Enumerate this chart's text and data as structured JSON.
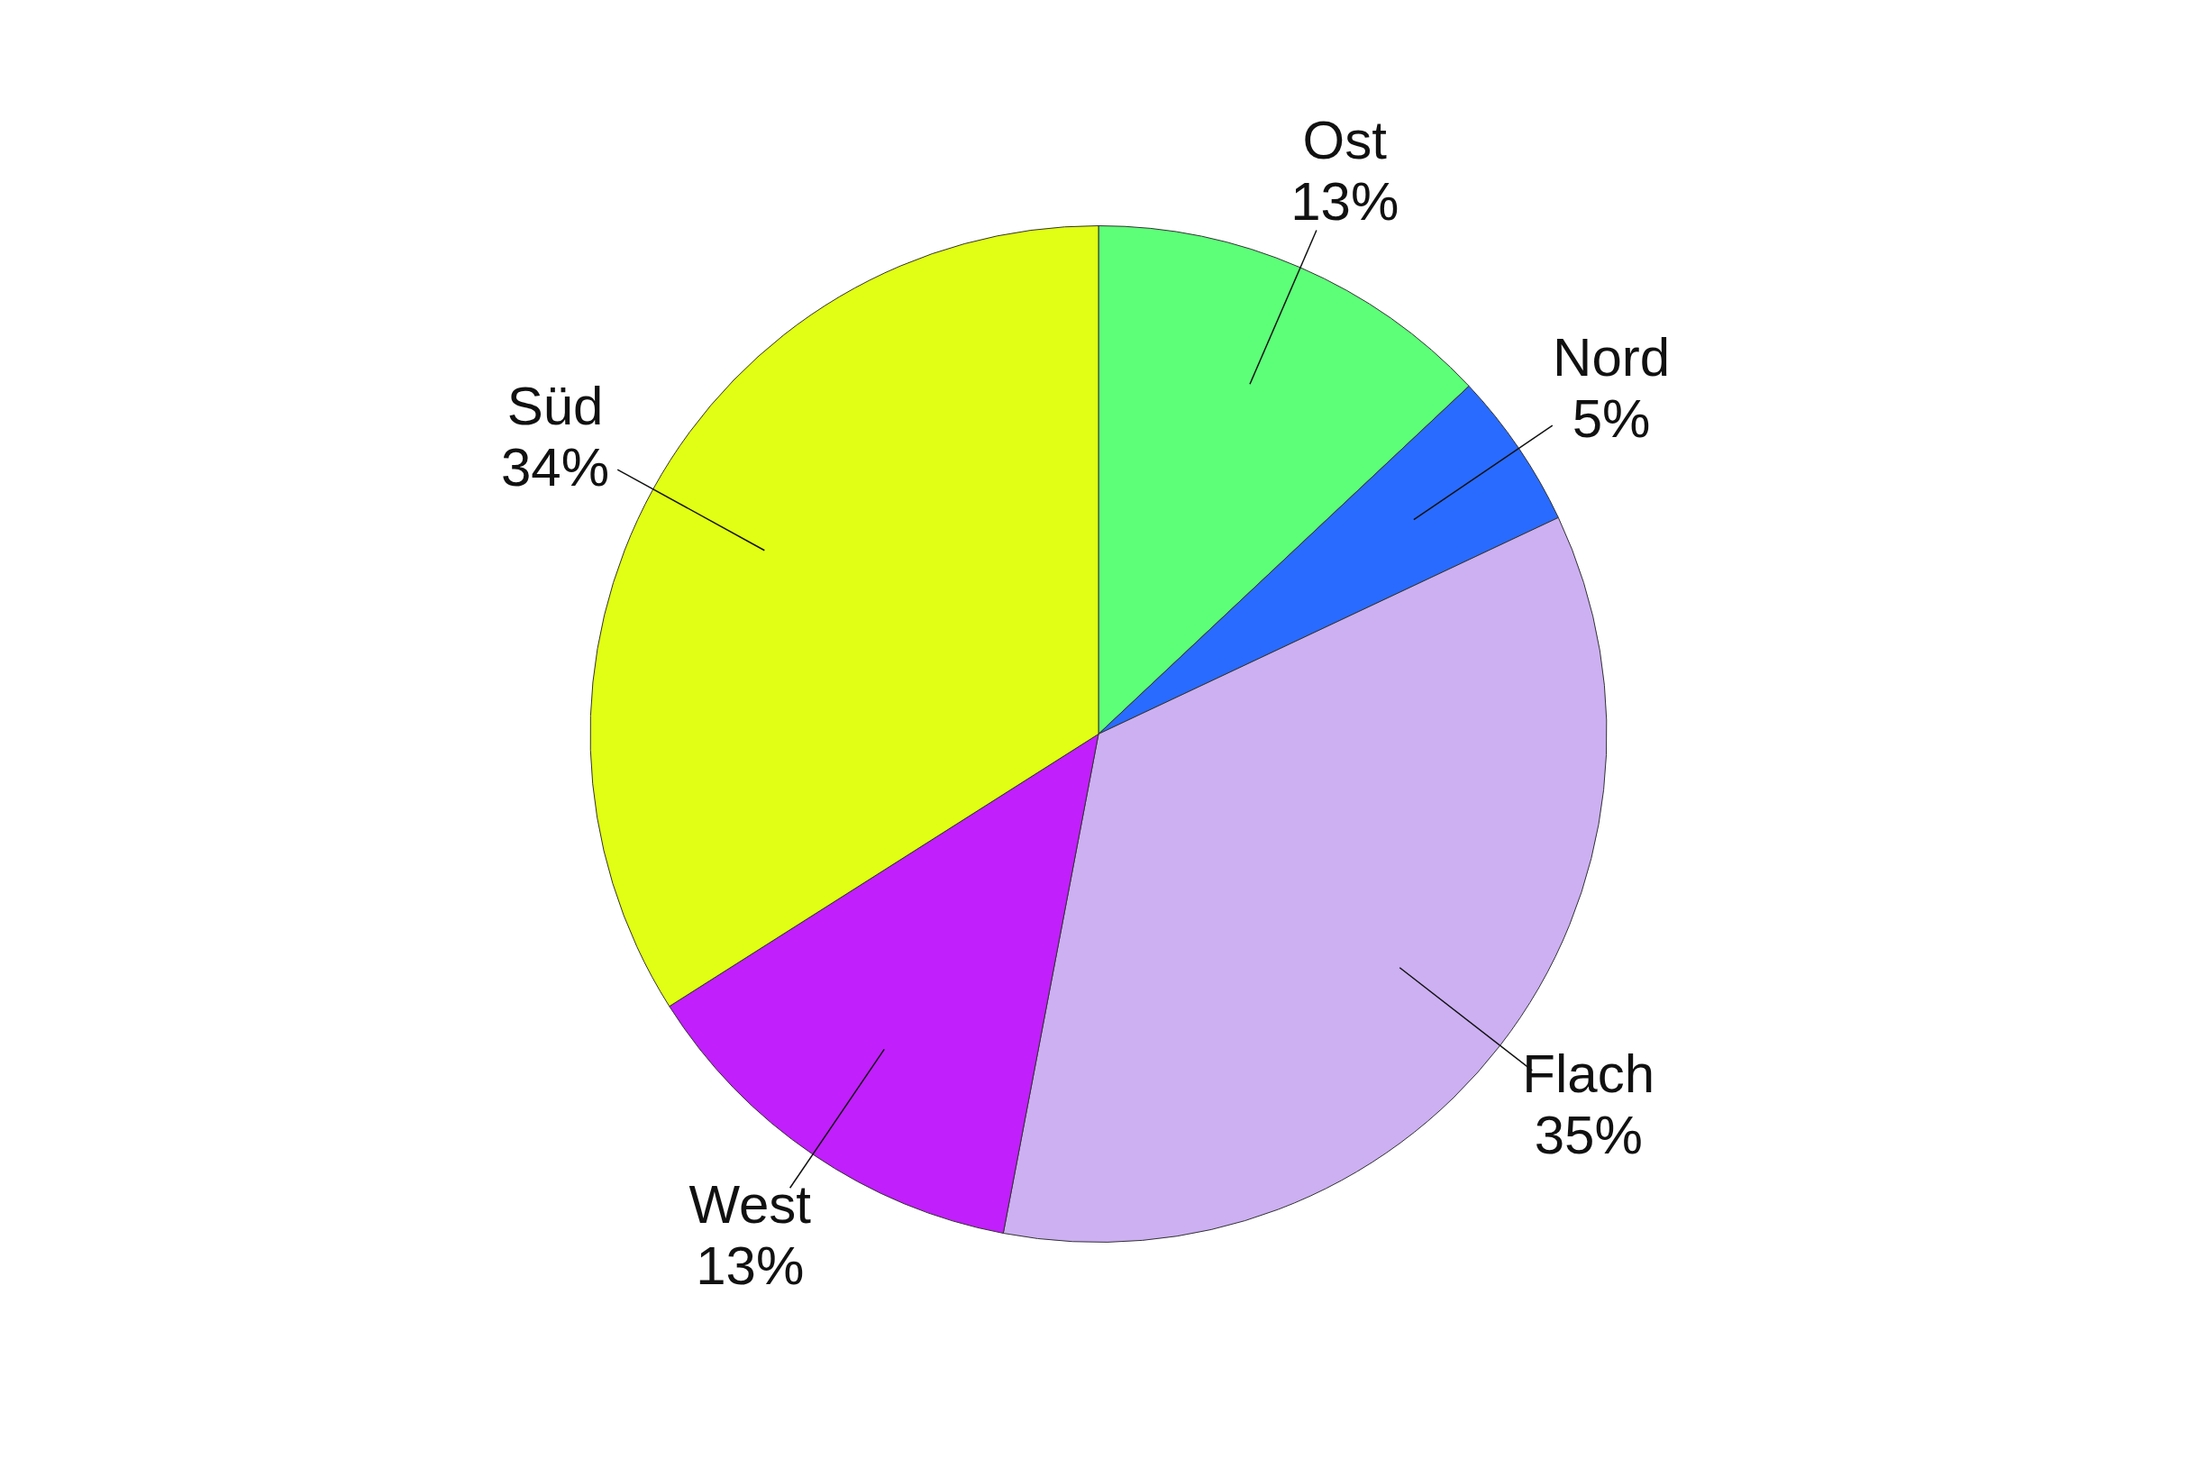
{
  "chart_data": {
    "type": "pie",
    "categories": [
      "Ost",
      "Nord",
      "Flach",
      "West",
      "Süd"
    ],
    "values": [
      13,
      5,
      35,
      13,
      34
    ],
    "colors": [
      "#5dff79",
      "#2a6bff",
      "#ccb0f2",
      "#c11ffc",
      "#e1ff14"
    ],
    "value_labels": [
      "13%",
      "5%",
      "35%",
      "13%",
      "34%"
    ],
    "legend": false
  }
}
